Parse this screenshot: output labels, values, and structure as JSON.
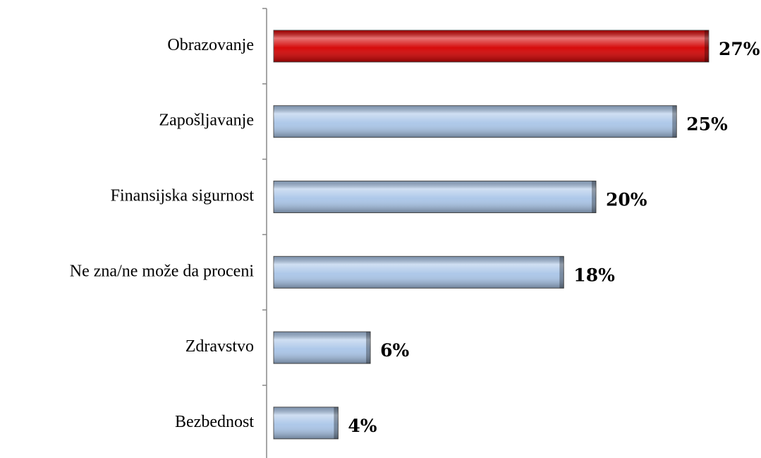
{
  "chart_data": {
    "type": "bar",
    "orientation": "horizontal",
    "categories": [
      "Obrazovanje",
      "Zapošljavanje",
      "Finansijska sigurnost",
      "Ne zna/ne može da proceni",
      "Zdravstvo",
      "Bezbednost"
    ],
    "values": [
      27,
      25,
      20,
      18,
      6,
      4
    ],
    "value_labels": [
      "27%",
      "25%",
      "20%",
      "18%",
      "6%",
      "4%"
    ],
    "colors": [
      "#d40000",
      "#a9c5e8",
      "#a9c5e8",
      "#a9c5e8",
      "#a9c5e8",
      "#a9c5e8"
    ]
  }
}
